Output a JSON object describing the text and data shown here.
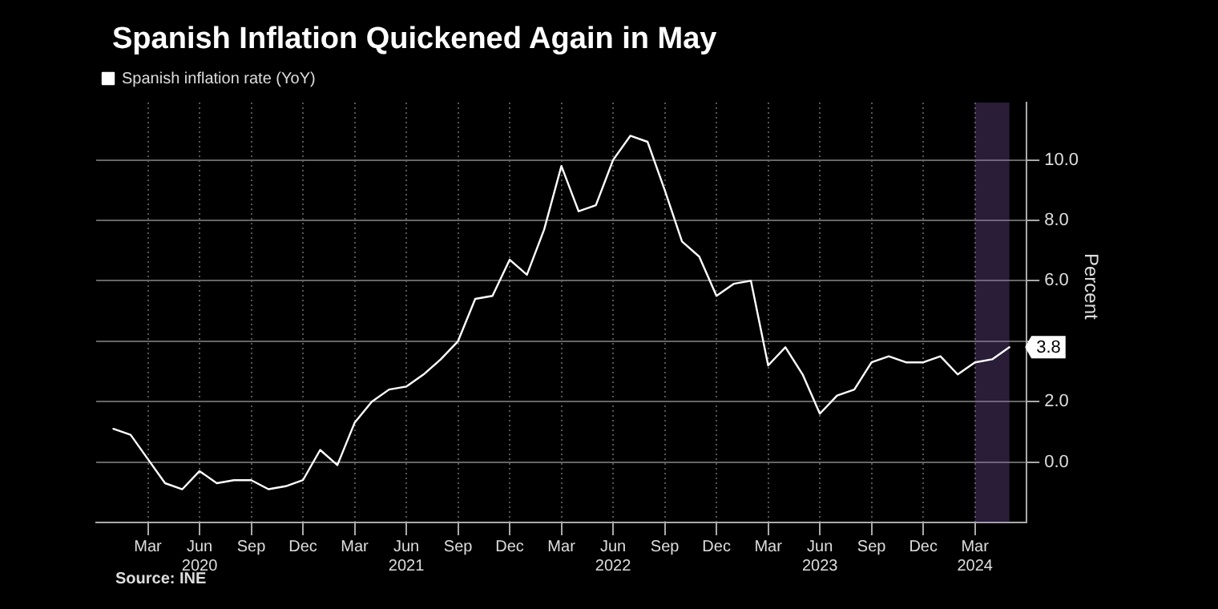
{
  "chart_data": {
    "type": "line",
    "title": "Spanish Inflation Quickened Again in May",
    "ylabel": "Percent",
    "x": [
      "2020-01",
      "2020-02",
      "2020-03",
      "2020-04",
      "2020-05",
      "2020-06",
      "2020-07",
      "2020-08",
      "2020-09",
      "2020-10",
      "2020-11",
      "2020-12",
      "2021-01",
      "2021-02",
      "2021-03",
      "2021-04",
      "2021-05",
      "2021-06",
      "2021-07",
      "2021-08",
      "2021-09",
      "2021-10",
      "2021-11",
      "2021-12",
      "2022-01",
      "2022-02",
      "2022-03",
      "2022-04",
      "2022-05",
      "2022-06",
      "2022-07",
      "2022-08",
      "2022-09",
      "2022-10",
      "2022-11",
      "2022-12",
      "2023-01",
      "2023-02",
      "2023-03",
      "2023-04",
      "2023-05",
      "2023-06",
      "2023-07",
      "2023-08",
      "2023-09",
      "2023-10",
      "2023-11",
      "2023-12",
      "2024-01",
      "2024-02",
      "2024-03",
      "2024-04",
      "2024-05"
    ],
    "series": [
      {
        "name": "Spanish inflation rate (YoY)",
        "color": "#ffffff",
        "values": [
          1.1,
          0.9,
          0.1,
          -0.7,
          -0.9,
          -0.3,
          -0.7,
          -0.6,
          -0.6,
          -0.9,
          -0.8,
          -0.6,
          0.4,
          -0.1,
          1.3,
          2.0,
          2.4,
          2.5,
          2.9,
          3.4,
          4.0,
          5.4,
          5.5,
          6.7,
          6.2,
          7.7,
          9.8,
          8.3,
          8.5,
          10.0,
          10.8,
          10.6,
          9.0,
          7.3,
          6.8,
          5.5,
          5.9,
          6.0,
          3.2,
          3.8,
          2.9,
          1.6,
          2.2,
          2.4,
          3.3,
          3.5,
          3.3,
          3.3,
          3.5,
          2.9,
          3.3,
          3.4,
          3.8
        ],
        "value_labels": [
          null,
          null,
          null,
          null,
          null,
          null,
          null,
          null,
          null,
          null,
          null,
          null,
          null,
          null,
          null,
          null,
          null,
          null,
          null,
          null,
          null,
          null,
          null,
          null,
          null,
          null,
          null,
          null,
          null,
          null,
          null,
          null,
          null,
          null,
          null,
          null,
          null,
          null,
          null,
          null,
          null,
          null,
          null,
          null,
          null,
          null,
          null,
          null,
          null,
          null,
          null,
          null,
          "3.8"
        ]
      }
    ],
    "xlim": [
      "2019-12",
      "2024-06"
    ],
    "xticks": [
      {
        "value": "2020-03",
        "label": "Mar"
      },
      {
        "value": "2020-06",
        "label": "Jun 2020"
      },
      {
        "value": "2020-09",
        "label": "Sep"
      },
      {
        "value": "2020-12",
        "label": "Dec"
      },
      {
        "value": "2021-03",
        "label": "Mar"
      },
      {
        "value": "2021-06",
        "label": "Jun 2021"
      },
      {
        "value": "2021-09",
        "label": "Sep"
      },
      {
        "value": "2021-12",
        "label": "Dec"
      },
      {
        "value": "2022-03",
        "label": "Mar"
      },
      {
        "value": "2022-06",
        "label": "Jun 2022"
      },
      {
        "value": "2022-09",
        "label": "Sep"
      },
      {
        "value": "2022-12",
        "label": "Dec"
      },
      {
        "value": "2023-03",
        "label": "Mar"
      },
      {
        "value": "2023-06",
        "label": "Jun 2023"
      },
      {
        "value": "2023-09",
        "label": "Sep"
      },
      {
        "value": "2023-12",
        "label": "Dec"
      },
      {
        "value": "2024-03",
        "label": "Mar 2024"
      }
    ],
    "ylim": [
      -2,
      11.9
    ],
    "yticks": [
      {
        "value": 0,
        "label": "0.0"
      },
      {
        "value": 2,
        "label": "2.0"
      },
      {
        "value": 4,
        "label": null
      },
      {
        "value": 6,
        "label": "6.0"
      },
      {
        "value": 8,
        "label": "8.0"
      },
      {
        "value": 10,
        "label": "10.0"
      }
    ],
    "grid": true,
    "legend": "top left",
    "bands": [
      {
        "axis": "x",
        "from": "2024-03",
        "to": "2024-05",
        "color": "#8a5fb8"
      }
    ],
    "annotations": [
      "Source: INE"
    ]
  }
}
